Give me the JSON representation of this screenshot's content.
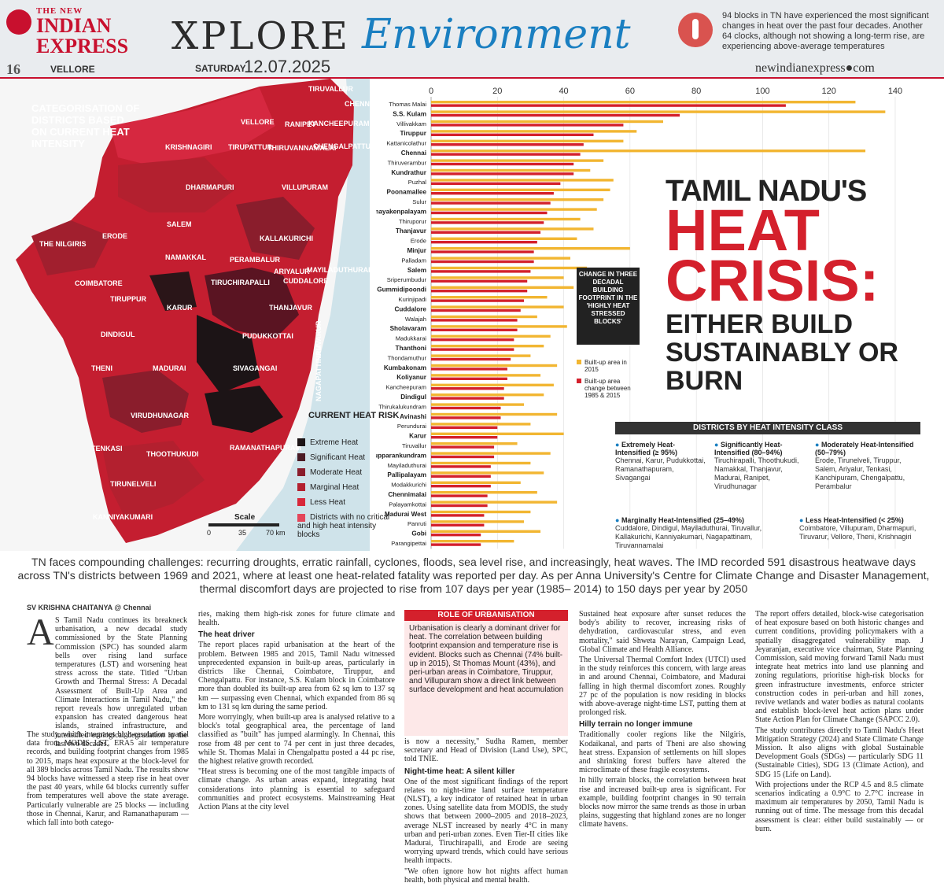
{
  "masthead": {
    "logo_the": "THE NEW",
    "logo_line1": "INDIAN",
    "logo_line2": "EXPRESS",
    "section": "XPLORE",
    "subsection": "Environment",
    "page_number": "16",
    "edition": "VELLORE",
    "day": "SATURDAY",
    "date": "12.07.2025",
    "website": "newindianexpress●com",
    "top_note": "94 blocks in TN have experienced the most significant changes in heat over the past four decades. Another 64 clocks, although not showing a long-term rise, are experiencing above-average temperatures"
  },
  "map": {
    "title": "CATEGORISATION OF DISTRICTS BASED ON CURRENT HEAT INTENSITY",
    "districts": [
      "TIRUVALLUR",
      "CHENNAI",
      "RANIPET",
      "VELLORE",
      "KANCHEEPURAM",
      "KRISHNAGIRI",
      "TIRUPATTUR",
      "THIRUVANNAMALAI",
      "CHENGALPATTU",
      "DHARMAPURI",
      "VILLUPURAM",
      "SALEM",
      "KALLAKURICHI",
      "ERODE",
      "THE NILGIRIS",
      "CUDDALORE",
      "NAMAKKAL",
      "PERAMBALUR",
      "ARIYALUR",
      "MAYILADUTHURAI",
      "COIMBATORE",
      "TIRUCHIRAPALLI",
      "TIRUPPUR",
      "KARUR",
      "THANJAVUR",
      "TIRUVARUR",
      "NAGAPATTINAM",
      "DINDIGUL",
      "PUDUKKOTTAI",
      "THENI",
      "MADURAI",
      "SIVAGANGAI",
      "VIRUDHUNAGAR",
      "RAMANATHAPURAM",
      "TENKASI",
      "THOOTHUKUDI",
      "TIRUNELVELI",
      "KANNIYAKUMARI"
    ],
    "legend_title": "CURRENT HEAT RISK",
    "legend": [
      {
        "label": "Extreme Heat",
        "color": "#1c1416"
      },
      {
        "label": "Significant Heat",
        "color": "#4a1a24"
      },
      {
        "label": "Moderate Heat",
        "color": "#8a1d2c"
      },
      {
        "label": "Marginal Heat",
        "color": "#b3202f"
      },
      {
        "label": "Less Heat",
        "color": "#d8283a"
      },
      {
        "label": "Districts with no critical and high heat intensity blocks",
        "color": "#e4465a"
      }
    ],
    "scale_title": "Scale",
    "scale_ticks": [
      "0",
      "35",
      "70 km"
    ]
  },
  "chart_data": {
    "type": "bar",
    "title": "CHANGE IN THREE DECADAL BUILDING FOOTPRINT IN THE 'HIGHLY HEAT STRESSED BLOCKS'",
    "xlim": [
      0,
      140
    ],
    "xticks": [
      "0",
      "20",
      "40",
      "60",
      "80",
      "100",
      "120",
      "140"
    ],
    "categories": [
      "Thomas Malai",
      "S.S. Kulam",
      "Villivakkam",
      "Tiruppur",
      "Kattanicolathur",
      "Chennai",
      "Thiruverambur",
      "Kundrathur",
      "Puzhal",
      "Poonamallee",
      "Sulur",
      "Periyanayakenpalayam",
      "Thiruporur",
      "Thanjavur",
      "Erode",
      "Minjur",
      "Palladam",
      "Salem",
      "Sriperumbudur",
      "Gummidipoondi",
      "Kurinjipadi",
      "Cuddalore",
      "Walajah",
      "Sholavaram",
      "Madukkarai",
      "Thanthoni",
      "Thondamuthur",
      "Kumbakonam",
      "Koliyanur",
      "Kancheepuram",
      "Dindigul",
      "Thirukalukundram",
      "Avinashi",
      "Perundurai",
      "Karur",
      "Tiruvallur",
      "Thirupparankundram",
      "Mayiladuthurai",
      "Pallipalayam",
      "Modakkurichi",
      "Chennimalai",
      "Palayamkottai",
      "Madurai West",
      "Panruti",
      "Gobi",
      "Parangipettai"
    ],
    "bold_categories": [
      "S.S. Kulam",
      "Tiruppur",
      "Chennai",
      "Kundrathur",
      "Poonamallee",
      "Periyanayakenpalayam",
      "Thanjavur",
      "Minjur",
      "Salem",
      "Gummidipoondi",
      "Cuddalore",
      "Sholavaram",
      "Thanthoni",
      "Kumbakonam",
      "Koliyanur",
      "Dindigul",
      "Avinashi",
      "Karur",
      "Thirupparankundram",
      "Pallipalayam",
      "Chennimalai",
      "Madurai West",
      "Gobi"
    ],
    "series": [
      {
        "name": "Built-up area in 2015",
        "color": "#f2b632",
        "values": [
          128,
          137,
          70,
          62,
          58,
          131,
          52,
          48,
          55,
          54,
          52,
          50,
          45,
          49,
          44,
          60,
          42,
          47,
          40,
          43,
          35,
          40,
          32,
          41,
          36,
          34,
          30,
          38,
          33,
          37,
          34,
          28,
          38,
          30,
          40,
          26,
          36,
          30,
          34,
          27,
          32,
          38,
          30,
          28,
          33,
          25
        ]
      },
      {
        "name": "Built-up area change between 1985 & 2015",
        "color": "#d4202c",
        "values": [
          107,
          75,
          58,
          49,
          46,
          45,
          43,
          43,
          39,
          37,
          36,
          35,
          34,
          33,
          32,
          31,
          31,
          30,
          29,
          29,
          28,
          27,
          26,
          26,
          25,
          25,
          24,
          23,
          23,
          22,
          22,
          21,
          21,
          20,
          20,
          19,
          19,
          18,
          18,
          18,
          17,
          17,
          16,
          16,
          15,
          15
        ]
      }
    ]
  },
  "headline": {
    "line1": "TAMIL NADU'S",
    "line2": "HEAT",
    "line3": "CRISIS:",
    "line4": "EITHER BUILD SUSTAINABLY OR BURN"
  },
  "classes": {
    "title": "DISTRICTS BY HEAT INTENSITY CLASS",
    "items": [
      {
        "heading": "Extremely Heat-Intensified (≥ 95%)",
        "text": "Chennai, Karur, Pudukkottai, Ramanathapuram, Sivagangai"
      },
      {
        "heading": "Significantly Heat-Intensified (80–94%)",
        "text": "Tiruchirapalli, Thoothukudi, Namakkal, Thanjavur, Madurai, Ranipet, Virudhunagar"
      },
      {
        "heading": "Moderately Heat-Intensified (50–79%)",
        "text": "Erode, Tirunelveli, Tiruppur, Salem, Ariyalur, Tenkasi, Kanchipuram, Chengalpattu, Perambalur"
      },
      {
        "heading": "Marginally Heat-Intensified (25–49%)",
        "text": "Cuddalore, Dindigul, Mayiladuthurai, Tiruvallur, Kallakurichi, Kanniyakumari, Nagapattinam, Tiruvannamalai"
      },
      {
        "heading": "Less Heat-Intensified (< 25%)",
        "text": "Coimbatore, Villupuram, Dharmapuri, Tiruvarur, Vellore, Theni, Krishnagiri"
      }
    ]
  },
  "intro": "TN faces compounding challenges: recurring droughts, erratic rainfall, cyclones, floods, sea level rise, and increasingly, heat waves. The IMD recorded 591 disastrous heatwave days across TN's districts between 1969 and 2021, where at least one heat-related fatality was reported per day. As per Anna University's Centre for Climate Change and Disaster Management, thermal discomfort days are projected to rise from 107 days per year (1985– 2014) to 150 days per year by 2050",
  "article": {
    "byline": "SV KRISHNA CHAITANYA @ Chennai",
    "dropcap": "A",
    "col1": [
      "S Tamil Nadu continues its breakneck urbanisation, a new decadal study commissioned by the State Planning Commission (SPC) has sounded alarm bells over rising land surface temperatures (LST) and worsening heat stress across the state. Titled \"Urban Growth and Thermal Stress: A Decadal Assessment of Built-Up Area and Climate Interactions in Tamil Nadu,\" the report reveals how unregulated urban expansion has created dangerous heat islands, strained infrastructure, and intensified ecological degradation in the last two decades.",
      "The study, which integrates high-resolution spatial data from MODIS LST, ERA5 air temperature records, and building footprint changes from 1985 to 2015, maps heat exposure at the block-level for all 389 blocks across Tamil Nadu. The results show 94 blocks have witnessed a steep rise in heat over the past 40 years, while 64 blocks currently suffer from temperatures well above the state average. Particularly vulnerable are 25 blocks — including those in Chennai, Karur, and Ramanathapuram — which fall into both catego-"
    ],
    "col2_a": "ries, making them high-risk zones for future climate and health.",
    "col2_h1": "The heat driver",
    "col2": [
      "The report places rapid urbanisation at the heart of the problem. Between 1985 and 2015, Tamil Nadu witnessed unprecedented expansion in built-up areas, particularly in districts like Chennai, Coimbatore, Tiruppur, and Chengalpattu. For instance, S.S. Kulam block in Coimbatore more than doubled its built-up area from 62 sq km to 137 sq km — surpassing even Chennai, which expanded from 86 sq km to 131 sq km during the same period.",
      "More worryingly, when built-up area is analysed relative to a block's total geographical area, the percentage of land classified as \"built\" has jumped alarmingly. In Chennai, this rose from 48 per cent to 74 per cent in just three decades, while St. Thomas Malai in Chengalpattu posted a 44 pc rise, the highest relative growth recorded.",
      "\"Heat stress is becoming one of the most tangible impacts of climate change. As urban areas expand, integrating heat considerations into planning is essential to safeguard communities and protect ecosystems. Mainstreaming Heat Action Plans at the city level"
    ],
    "box_title": "ROLE OF URBANISATION",
    "box_text": "Urbanisation is clearly a dominant driver for heat. The correlation between building footprint expansion and temperature rise is evident. Blocks such as Chennai (74% built-up in 2015), St Thomas Mount (43%), and peri-urban areas in Coimbatore, Tiruppur, and Villupuram show a direct link between surface development and heat accumulation",
    "col3_a": "is now a necessity,\" Sudha Ramen, member secretary and Head of Division (Land Use), SPC, told TNIE.",
    "col3_h1": "Night-time heat: A silent killer",
    "col3": [
      "One of the most significant findings of the report relates to night-time land surface temperature (NLST), a key indicator of retained heat in urban zones. Using satellite data from MODIS, the study shows that between 2000–2005 and 2018–2023, average NLST increased by nearly 4°C in many urban and peri-urban zones. Even Tier-II cities like Madurai, Tiruchirapalli, and Erode are seeing worrying upward trends, which could have serious health impacts.",
      "\"We often ignore how hot nights affect human health, both physical and mental health."
    ],
    "col4": [
      "Sustained heat exposure after sunset reduces the body's ability to recover, increasing risks of dehydration, cardiovascular stress, and even mortality,\" said Shweta Narayan, Campaign Lead, Global Climate and Health Alliance.",
      "The Universal Thermal Comfort Index (UTCI) used in the study reinforces this concern, with large areas in and around Chennai, Coimbatore, and Madurai falling in high thermal discomfort zones. Roughly 27 pc of the population is now residing in blocks with above-average night-time LST, putting them at prolonged risk."
    ],
    "col4_h1": "Hilly terrain no longer immune",
    "col4_b": [
      "Traditionally cooler regions like the Nilgiris, Kodaikanal, and parts of Theni are also showing heat stress. Expansion of settlements on hill slopes and shrinking forest buffers have altered the microclimate of these fragile ecosystems.",
      "In hilly terrain blocks, the correlation between heat rise and increased built-up area is significant. For example, building footprint changes in 90 terrain blocks now mirror the same trends as those in urban plains, suggesting that highland zones are no longer climate havens."
    ],
    "col5": [
      "The report offers detailed, block-wise categorisation of heat exposure based on both historic changes and current conditions, providing policymakers with a spatially disaggregated vulnerability map. J Jeyaranjan, executive vice chairman, State Planning Commission, said moving forward Tamil Nadu must integrate heat metrics into land use planning and zoning regulations, prioritise high-risk blocks for green infrastructure investments, enforce stricter construction codes in peri-urban and hill zones, revive wetlands and water bodies as natural coolants and establish block-level heat action plans under State Action Plan for Climate Change (SAPCC 2.0).",
      "The study contributes directly to Tamil Nadu's Heat Mitigation Strategy (2024) and State Climate Change Mission. It also aligns with global Sustainable Development Goals (SDGs) — particularly SDG 11 (Sustainable Cities), SDG 13 (Climate Action), and SDG 15 (Life on Land).",
      "With projections under the RCP 4.5 and 8.5 climate scenarios indicating a 0.9°C to 2.7°C increase in maximum air temperatures by 2050, Tamil Nadu is running out of time. The message from this decadal assessment is clear: either build sustainably — or burn."
    ]
  }
}
